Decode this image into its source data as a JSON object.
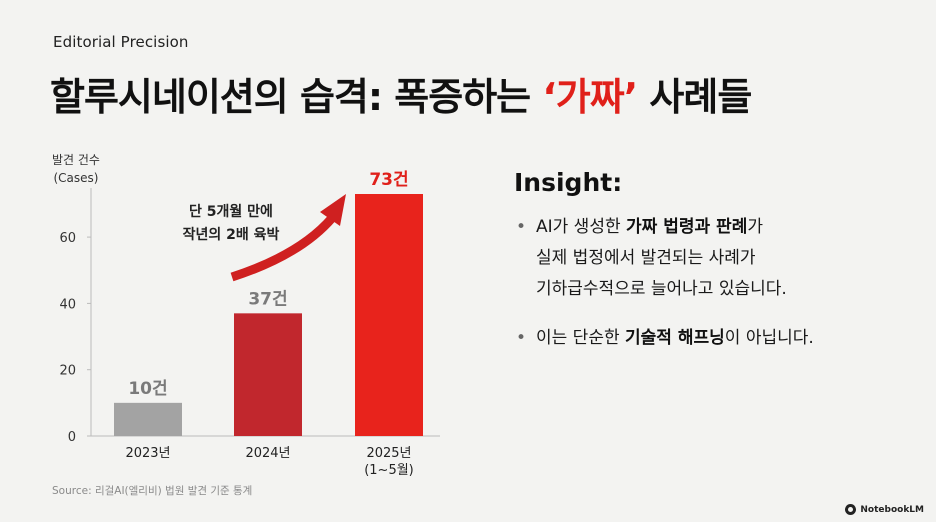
{
  "header": {
    "eyebrow": "Editorial Precision",
    "title_before": "할루시네이션의 습격: 폭증하는 ",
    "title_highlight": "‘가짜’",
    "title_after": " 사례들"
  },
  "chart_data": {
    "type": "bar",
    "ylabel_line1": "발견 건수",
    "ylabel_line2": "(Cases)",
    "ylim": [
      0,
      73
    ],
    "yticks": [
      0,
      20,
      40,
      60
    ],
    "categories": [
      {
        "label": "2023년",
        "sublabel": ""
      },
      {
        "label": "2024년",
        "sublabel": ""
      },
      {
        "label": "2025년",
        "sublabel": "(1~5월)"
      }
    ],
    "values": [
      10,
      37,
      73
    ],
    "data_labels": [
      "10건",
      "37건",
      "73건"
    ],
    "colors": [
      "#a3a3a3",
      "#c1272d",
      "#e8231c"
    ],
    "label_colors": [
      "#7a7a7a",
      "#7a7a7a",
      "#e0201a"
    ],
    "annotation_line1": "단 5개월 만에",
    "annotation_line2": "작년의 2배 육박",
    "arrow_color": "#cf2020",
    "grid": false
  },
  "source": "Source: 리걸AI(엘리비) 법원 발견 기준 통계",
  "insight": {
    "title": "Insight:",
    "bullet_symbol": "•",
    "point1": {
      "pre": "AI가 생성한 ",
      "bold": "가짜 법령과 판례",
      "line1_post": "가",
      "line2": "실제 법정에서 발견되는 사례가",
      "line3": "기하급수적으로 늘어나고 있습니다."
    },
    "point2": {
      "pre": "이는 단순한 ",
      "bold": "기술적 해프닝",
      "post": "이 아닙니다."
    }
  },
  "brand": {
    "icon": "notebooklm-logo-icon",
    "label": "NotebookLM"
  }
}
